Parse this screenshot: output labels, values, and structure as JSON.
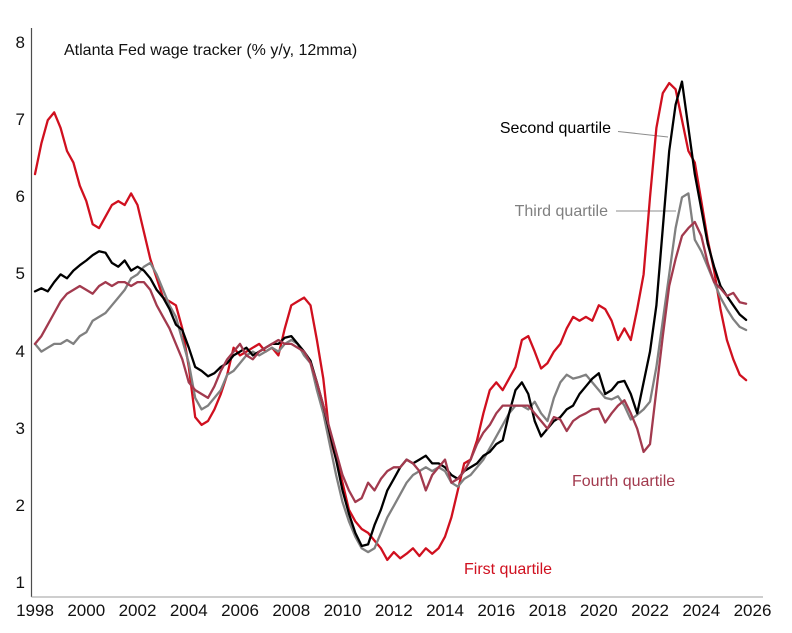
{
  "chart_data": {
    "type": "line",
    "title": "Atlanta Fed wage tracker (% y/y, 12mma)",
    "xlabel": "",
    "ylabel": "",
    "xlim": [
      1998,
      2026.5
    ],
    "ylim": [
      0.8,
      8.2
    ],
    "grid": false,
    "legend_position": "inline-annotations",
    "x_ticks": [
      1998,
      2000,
      2002,
      2004,
      2006,
      2008,
      2010,
      2012,
      2014,
      2016,
      2018,
      2020,
      2022,
      2024,
      2026
    ],
    "y_ticks": [
      1,
      2,
      3,
      4,
      5,
      6,
      7,
      8
    ],
    "x_start": 1998,
    "x_step_years": 0.25,
    "series": [
      {
        "name": "First quartile",
        "color": "#d0101f",
        "values": [
          6.3,
          6.7,
          7.0,
          7.1,
          6.9,
          6.6,
          6.45,
          6.15,
          5.95,
          5.65,
          5.6,
          5.75,
          5.9,
          5.95,
          5.9,
          6.05,
          5.9,
          5.55,
          5.2,
          4.95,
          4.7,
          4.65,
          4.6,
          4.3,
          3.8,
          3.15,
          3.05,
          3.1,
          3.25,
          3.45,
          3.7,
          4.05,
          3.95,
          4.0,
          4.05,
          4.1,
          4.0,
          4.05,
          3.95,
          4.3,
          4.6,
          4.65,
          4.7,
          4.6,
          4.15,
          3.65,
          2.9,
          2.6,
          2.3,
          1.95,
          1.8,
          1.7,
          1.65,
          1.55,
          1.45,
          1.3,
          1.4,
          1.32,
          1.38,
          1.45,
          1.35,
          1.45,
          1.38,
          1.45,
          1.6,
          1.85,
          2.2,
          2.55,
          2.6,
          2.85,
          3.2,
          3.5,
          3.6,
          3.5,
          3.65,
          3.8,
          4.15,
          4.2,
          4.0,
          3.78,
          3.85,
          4.0,
          4.1,
          4.3,
          4.45,
          4.4,
          4.45,
          4.4,
          4.6,
          4.55,
          4.4,
          4.15,
          4.3,
          4.15,
          4.55,
          5.0,
          6.0,
          6.9,
          7.35,
          7.48,
          7.4,
          7.0,
          6.6,
          6.45,
          5.95,
          5.45,
          5.05,
          4.55,
          4.15,
          3.9,
          3.7,
          3.63
        ]
      },
      {
        "name": "Second quartile",
        "color": "#000000",
        "values": [
          4.78,
          4.82,
          4.78,
          4.9,
          5.0,
          4.95,
          5.05,
          5.12,
          5.18,
          5.25,
          5.3,
          5.28,
          5.15,
          5.1,
          5.18,
          5.05,
          5.1,
          5.05,
          4.95,
          4.8,
          4.7,
          4.55,
          4.35,
          4.28,
          4.05,
          3.8,
          3.75,
          3.68,
          3.72,
          3.8,
          3.85,
          3.95,
          4.0,
          4.05,
          3.95,
          4.0,
          4.05,
          4.1,
          4.1,
          4.18,
          4.2,
          4.1,
          4.0,
          3.88,
          3.6,
          3.3,
          2.95,
          2.6,
          2.2,
          1.9,
          1.65,
          1.48,
          1.5,
          1.75,
          1.95,
          2.2,
          2.35,
          2.5,
          2.6,
          2.55,
          2.6,
          2.65,
          2.55,
          2.55,
          2.5,
          2.4,
          2.35,
          2.45,
          2.5,
          2.55,
          2.65,
          2.7,
          2.8,
          2.85,
          3.2,
          3.5,
          3.6,
          3.45,
          3.1,
          2.9,
          3.0,
          3.1,
          3.15,
          3.25,
          3.3,
          3.45,
          3.55,
          3.65,
          3.72,
          3.45,
          3.5,
          3.6,
          3.62,
          3.45,
          3.2,
          3.6,
          4.0,
          4.6,
          5.6,
          6.6,
          7.2,
          7.5,
          6.9,
          6.3,
          5.85,
          5.4,
          5.1,
          4.85,
          4.72,
          4.6,
          4.48,
          4.41
        ]
      },
      {
        "name": "Third quartile",
        "color": "#808080",
        "values": [
          4.1,
          4.0,
          4.05,
          4.1,
          4.1,
          4.15,
          4.1,
          4.2,
          4.25,
          4.4,
          4.45,
          4.5,
          4.6,
          4.7,
          4.8,
          4.95,
          5.0,
          5.1,
          5.15,
          5.0,
          4.8,
          4.6,
          4.45,
          4.15,
          3.85,
          3.4,
          3.25,
          3.3,
          3.4,
          3.5,
          3.7,
          3.75,
          3.85,
          3.95,
          4.0,
          3.95,
          4.0,
          4.05,
          4.0,
          4.1,
          4.15,
          4.1,
          3.95,
          3.85,
          3.5,
          3.2,
          2.8,
          2.4,
          2.05,
          1.8,
          1.6,
          1.45,
          1.4,
          1.45,
          1.65,
          1.85,
          2.0,
          2.15,
          2.3,
          2.4,
          2.45,
          2.5,
          2.45,
          2.5,
          2.45,
          2.3,
          2.25,
          2.35,
          2.4,
          2.5,
          2.6,
          2.75,
          2.9,
          3.05,
          3.2,
          3.3,
          3.3,
          3.25,
          3.35,
          3.2,
          3.1,
          3.4,
          3.6,
          3.7,
          3.65,
          3.67,
          3.7,
          3.6,
          3.5,
          3.4,
          3.38,
          3.42,
          3.3,
          3.12,
          3.18,
          3.25,
          3.35,
          3.8,
          4.4,
          5.0,
          5.6,
          6.0,
          6.05,
          5.45,
          5.3,
          5.1,
          4.9,
          4.7,
          4.55,
          4.42,
          4.32,
          4.28
        ]
      },
      {
        "name": "Fourth quartile",
        "color": "#a23a4e",
        "values": [
          4.1,
          4.2,
          4.35,
          4.5,
          4.65,
          4.75,
          4.8,
          4.85,
          4.8,
          4.75,
          4.85,
          4.9,
          4.85,
          4.9,
          4.9,
          4.85,
          4.9,
          4.9,
          4.8,
          4.6,
          4.45,
          4.3,
          4.1,
          3.9,
          3.6,
          3.5,
          3.45,
          3.4,
          3.55,
          3.75,
          3.9,
          4.0,
          4.1,
          3.95,
          3.9,
          4.0,
          4.05,
          4.1,
          4.15,
          4.1,
          4.1,
          4.05,
          4.0,
          3.85,
          3.6,
          3.3,
          3.0,
          2.7,
          2.4,
          2.2,
          2.05,
          2.1,
          2.3,
          2.2,
          2.35,
          2.45,
          2.5,
          2.5,
          2.6,
          2.55,
          2.45,
          2.2,
          2.4,
          2.5,
          2.6,
          2.3,
          2.35,
          2.45,
          2.6,
          2.8,
          2.95,
          3.05,
          3.2,
          3.3,
          3.3,
          3.3,
          3.3,
          3.3,
          3.2,
          3.1,
          3.0,
          3.15,
          3.12,
          2.97,
          3.1,
          3.16,
          3.2,
          3.25,
          3.26,
          3.08,
          3.2,
          3.3,
          3.37,
          3.2,
          3.0,
          2.7,
          2.8,
          3.5,
          4.2,
          4.85,
          5.2,
          5.5,
          5.6,
          5.68,
          5.5,
          5.15,
          4.9,
          4.82,
          4.72,
          4.76,
          4.64,
          4.62
        ]
      }
    ],
    "annotations": [
      {
        "text": "Second quartile",
        "color": "#000000",
        "points_to": "Second quartile"
      },
      {
        "text": "Third quartile",
        "color": "#808080",
        "points_to": "Third quartile"
      },
      {
        "text": "Fourth quartile",
        "color": "#a23a4e",
        "points_to": "Fourth quartile"
      },
      {
        "text": "First quartile",
        "color": "#d0101f",
        "points_to": "First quartile"
      }
    ]
  }
}
